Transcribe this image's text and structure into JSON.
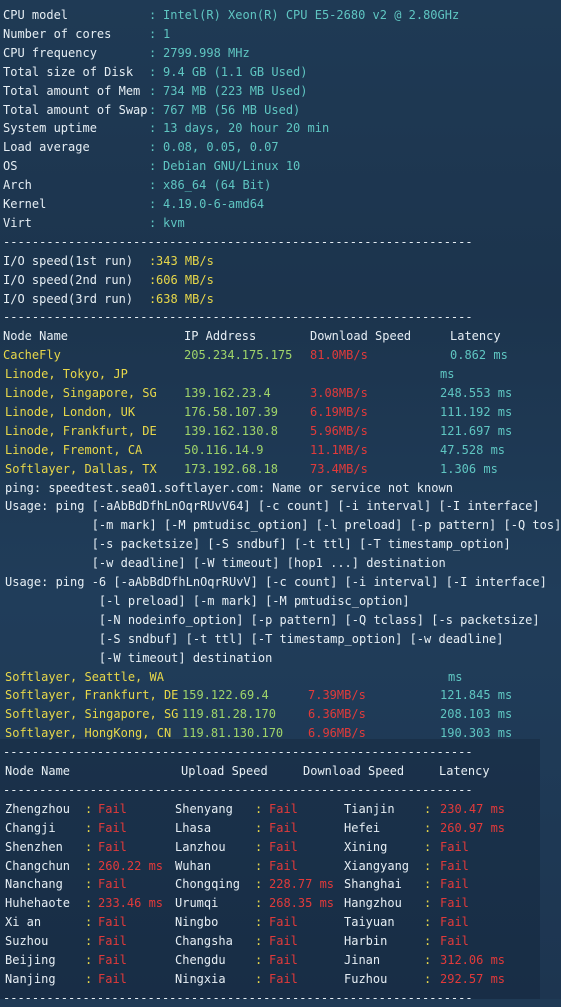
{
  "sysinfo": [
    {
      "label": "CPU model",
      "value": "Intel(R) Xeon(R) CPU E5-2680 v2 @ 2.80GHz"
    },
    {
      "label": "Number of cores",
      "value": "1"
    },
    {
      "label": "CPU frequency",
      "value": "2799.998 MHz"
    },
    {
      "label": "Total size of Disk",
      "value": "9.4 GB (1.1 GB Used)"
    },
    {
      "label": "Total amount of Mem",
      "value": "734 MB (223 MB Used)"
    },
    {
      "label": "Total amount of Swap",
      "value": "767 MB (56 MB Used)"
    },
    {
      "label": "System uptime",
      "value": "13 days, 20 hour 20 min"
    },
    {
      "label": "Load average",
      "value": "0.08, 0.05, 0.07"
    },
    {
      "label": "OS",
      "value": "Debian GNU/Linux 10"
    },
    {
      "label": "Arch",
      "value": "x86_64 (64 Bit)"
    },
    {
      "label": "Kernel",
      "value": "4.19.0-6-amd64"
    },
    {
      "label": "Virt",
      "value": "kvm"
    }
  ],
  "separator": "-----------------------------------------------------------------",
  "io": [
    {
      "label": "I/O speed(1st run)",
      "value": "343 MB/s"
    },
    {
      "label": "I/O speed(2nd run)",
      "value": "606 MB/s"
    },
    {
      "label": "I/O speed(3rd run)",
      "value": "638 MB/s"
    }
  ],
  "speed_header": {
    "node": "Node Name",
    "ip": "IP Address",
    "dl": "Download Speed",
    "lat": "Latency"
  },
  "speed_rows": [
    {
      "node": "CacheFly",
      "ip": "205.234.175.175",
      "dl": "81.0MB/s",
      "lat": "0.862 ms"
    },
    {
      "node": "Linode, Tokyo, JP",
      "ip": "",
      "dl": "",
      "lat": "ms"
    },
    {
      "node": "Linode, Singapore, SG",
      "ip": "139.162.23.4",
      "dl": "3.08MB/s",
      "lat": "248.553 ms"
    },
    {
      "node": "Linode, London, UK",
      "ip": "176.58.107.39",
      "dl": "6.19MB/s",
      "lat": "111.192 ms"
    },
    {
      "node": "Linode, Frankfurt, DE",
      "ip": "139.162.130.8",
      "dl": "5.96MB/s",
      "lat": "121.697 ms"
    },
    {
      "node": "Linode, Fremont, CA",
      "ip": "50.116.14.9",
      "dl": "11.1MB/s",
      "lat": "47.528 ms"
    },
    {
      "node": "Softlayer, Dallas, TX",
      "ip": "173.192.68.18",
      "dl": "73.4MB/s",
      "lat": "1.306 ms"
    }
  ],
  "ping_lines": [
    "ping: speedtest.sea01.softlayer.com: Name or service not known",
    "Usage: ping [-aAbBdDfhLnOqrRUvV64] [-c count] [-i interval] [-I interface]",
    "            [-m mark] [-M pmtudisc_option] [-l preload] [-p pattern] [-Q tos]",
    "            [-s packetsize] [-S sndbuf] [-t ttl] [-T timestamp_option]",
    "            [-w deadline] [-W timeout] [hop1 ...] destination",
    "Usage: ping -6 [-aAbBdDfhLnOqrRUvV] [-c count] [-i interval] [-I interface]",
    "             [-l preload] [-m mark] [-M pmtudisc_option]",
    "             [-N nodeinfo_option] [-p pattern] [-Q tclass] [-s packetsize]",
    "             [-S sndbuf] [-t ttl] [-T timestamp_option] [-w deadline]",
    "             [-W timeout] destination"
  ],
  "speed_rows2": [
    {
      "node": "Softlayer, Seattle, WA",
      "ip": "",
      "dl": "",
      "lat": "ms"
    },
    {
      "node": "Softlayer, Frankfurt, DE",
      "ip": "159.122.69.4",
      "dl": "7.39MB/s",
      "lat": "121.845 ms"
    },
    {
      "node": "Softlayer, Singapore, SG",
      "ip": "119.81.28.170",
      "dl": "6.36MB/s",
      "lat": "208.103 ms"
    },
    {
      "node": "Softlayer, HongKong, CN",
      "ip": "119.81.130.170",
      "dl": "6.96MB/s",
      "lat": "190.303 ms"
    }
  ],
  "china_header": {
    "node": "Node Name",
    "ul": "Upload Speed",
    "dl": "Download Speed",
    "lat": "Latency"
  },
  "china_rows": [
    [
      {
        "n": "Zhengzhou",
        "v": "Fail"
      },
      {
        "n": "Shenyang",
        "v": "Fail"
      },
      {
        "n": "Tianjin",
        "v": "230.47 ms"
      }
    ],
    [
      {
        "n": "Changji",
        "v": "Fail"
      },
      {
        "n": "Lhasa",
        "v": "Fail"
      },
      {
        "n": "Hefei",
        "v": "260.97 ms"
      }
    ],
    [
      {
        "n": "Shenzhen",
        "v": "Fail"
      },
      {
        "n": "Lanzhou",
        "v": "Fail"
      },
      {
        "n": "Xining",
        "v": "Fail"
      }
    ],
    [
      {
        "n": "Changchun",
        "v": "260.22 ms"
      },
      {
        "n": "Wuhan",
        "v": "Fail"
      },
      {
        "n": "Xiangyang",
        "v": "Fail"
      }
    ],
    [
      {
        "n": "Nanchang",
        "v": "Fail"
      },
      {
        "n": "Chongqing",
        "v": "228.77 ms"
      },
      {
        "n": "Shanghai",
        "v": "Fail"
      }
    ],
    [
      {
        "n": "Huhehaote",
        "v": "233.46 ms"
      },
      {
        "n": "Urumqi",
        "v": "268.35 ms"
      },
      {
        "n": "Hangzhou",
        "v": "Fail"
      }
    ],
    [
      {
        "n": "Xi an",
        "v": "Fail"
      },
      {
        "n": "Ningbo",
        "v": "Fail"
      },
      {
        "n": "Taiyuan",
        "v": "Fail"
      }
    ],
    [
      {
        "n": "Suzhou",
        "v": "Fail"
      },
      {
        "n": "Changsha",
        "v": "Fail"
      },
      {
        "n": "Harbin",
        "v": "Fail"
      }
    ],
    [
      {
        "n": "Beijing",
        "v": "Fail"
      },
      {
        "n": "Chengdu",
        "v": "Fail"
      },
      {
        "n": "Jinan",
        "v": "312.06 ms"
      }
    ],
    [
      {
        "n": "Nanjing",
        "v": "Fail"
      },
      {
        "n": "Ningxia",
        "v": "Fail"
      },
      {
        "n": "Fuzhou",
        "v": "292.57 ms"
      }
    ]
  ]
}
